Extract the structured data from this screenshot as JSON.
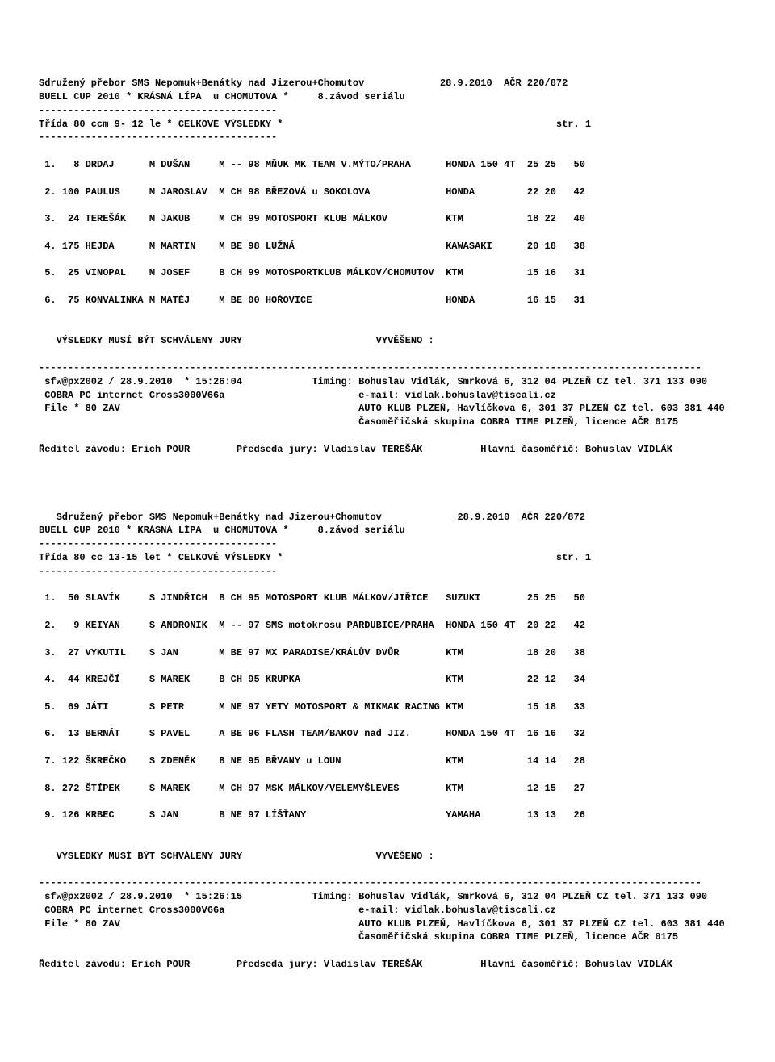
{
  "header": {
    "title": "Sdružený přebor SMS Nepomuk+Benátky nad Jizerou+Chomutov",
    "date": "28.9.2010",
    "acr": "AČR 220/872",
    "subtitle": "BUELL CUP 2010 * KRÁSNÁ LÍPA  u CHOMUTOVA *",
    "race": "8.závod seriálu",
    "dashes": "-----------------------------------------"
  },
  "class1": {
    "title": "Třída 80 ccm 9- 12 le * CELKOVÉ VÝSLEDKY *",
    "page": "str. 1",
    "rows": [
      {
        "pos": " 1.",
        "num": "  8",
        "name": "DRDAJ",
        "fi": "M",
        "fname": "DUŠAN",
        "cat": "M -- 98",
        "club": "MŇUK MK TEAM V.MÝTO/PRAHA",
        "bike": "HONDA 150 4T",
        "s1": "25",
        "s2": "25",
        "tot": "50"
      },
      {
        "pos": " 2.",
        "num": "100",
        "name": "PAULUS",
        "fi": "M",
        "fname": "JAROSLAV",
        "cat": "M CH 98",
        "club": "BŘEZOVÁ u SOKOLOVA",
        "bike": "HONDA       ",
        "s1": "22",
        "s2": "20",
        "tot": "42"
      },
      {
        "pos": " 3.",
        "num": " 24",
        "name": "TEREŠÁK",
        "fi": "M",
        "fname": "JAKUB",
        "cat": "M CH 99",
        "club": "MOTOSPORT KLUB MÁLKOV",
        "bike": "KTM         ",
        "s1": "18",
        "s2": "22",
        "tot": "40"
      },
      {
        "pos": " 4.",
        "num": "175",
        "name": "HEJDA",
        "fi": "M",
        "fname": "MARTIN",
        "cat": "M BE 98",
        "club": "LUŽNÁ",
        "bike": "KAWASAKI    ",
        "s1": "20",
        "s2": "18",
        "tot": "38"
      },
      {
        "pos": " 5.",
        "num": " 25",
        "name": "VINOPAL",
        "fi": "M",
        "fname": "JOSEF",
        "cat": "B CH 99",
        "club": "MOTOSPORTKLUB MÁLKOV/CHOMUTOV",
        "bike": "KTM         ",
        "s1": "15",
        "s2": "16",
        "tot": "31"
      },
      {
        "pos": " 6.",
        "num": " 75",
        "name": "KONVALINKA",
        "fi": "M",
        "fname": "MATĚJ",
        "cat": "M BE 00",
        "club": "HOŘOVICE",
        "bike": "HONDA       ",
        "s1": "16",
        "s2": "15",
        "tot": "31"
      }
    ]
  },
  "class2": {
    "title": "Třída 80 cc 13-15 let * CELKOVÉ VÝSLEDKY *",
    "page": "str. 1",
    "rows": [
      {
        "pos": " 1.",
        "num": " 50",
        "name": "SLAVÍK",
        "fi": "S",
        "fname": "JINDŘICH",
        "cat": "B CH 95",
        "club": "MOTOSPORT KLUB MÁLKOV/JIŘICE",
        "bike": "SUZUKI      ",
        "s1": "25",
        "s2": "25",
        "tot": "50"
      },
      {
        "pos": " 2.",
        "num": "  9",
        "name": "KEIYAN",
        "fi": "S",
        "fname": "ANDRONIK",
        "cat": "M -- 97",
        "club": "SMS motokrosu PARDUBICE/PRAHA",
        "bike": "HONDA 150 4T",
        "s1": "20",
        "s2": "22",
        "tot": "42"
      },
      {
        "pos": " 3.",
        "num": " 27",
        "name": "VYKUTIL",
        "fi": "S",
        "fname": "JAN",
        "cat": "M BE 97",
        "club": "MX PARADISE/KRÁLŮV DVŮR",
        "bike": "KTM         ",
        "s1": "18",
        "s2": "20",
        "tot": "38"
      },
      {
        "pos": " 4.",
        "num": " 44",
        "name": "KREJČÍ",
        "fi": "S",
        "fname": "MAREK",
        "cat": "B CH 95",
        "club": "KRUPKA",
        "bike": "KTM         ",
        "s1": "22",
        "s2": "12",
        "tot": "34"
      },
      {
        "pos": " 5.",
        "num": " 69",
        "name": "JÁTI",
        "fi": "S",
        "fname": "PETR",
        "cat": "M NE 97",
        "club": "YETY MOTOSPORT & MIKMAK RACING",
        "bike": "KTM         ",
        "s1": "15",
        "s2": "18",
        "tot": "33"
      },
      {
        "pos": " 6.",
        "num": " 13",
        "name": "BERNÁT",
        "fi": "S",
        "fname": "PAVEL",
        "cat": "A BE 96",
        "club": "FLASH TEAM/BAKOV nad JIZ.",
        "bike": "HONDA 150 4T",
        "s1": "16",
        "s2": "16",
        "tot": "32"
      },
      {
        "pos": " 7.",
        "num": "122",
        "name": "ŠKREČKO",
        "fi": "S",
        "fname": "ZDENĚK",
        "cat": "B NE 95",
        "club": "BŘVANY u LOUN",
        "bike": "KTM         ",
        "s1": "14",
        "s2": "14",
        "tot": "28"
      },
      {
        "pos": " 8.",
        "num": "272",
        "name": "ŠTÍPEK",
        "fi": "S",
        "fname": "MAREK",
        "cat": "M CH 97",
        "club": "MSK MÁLKOV/VELEMYŠLEVES",
        "bike": "KTM         ",
        "s1": "12",
        "s2": "15",
        "tot": "27"
      },
      {
        "pos": " 9.",
        "num": "126",
        "name": "KRBEC",
        "fi": "S",
        "fname": "JAN",
        "cat": "B NE 97",
        "club": "LÍŠŤANY",
        "bike": "YAMAHA      ",
        "s1": "13",
        "s2": "13",
        "tot": "26"
      }
    ]
  },
  "footer": {
    "approve": "VÝSLEDKY MUSÍ BÝT SCHVÁLENY JURY",
    "posted": "VYVĚŠENO :",
    "longdash": "------------------------------------------------------------------------------------------------------------------",
    "sfw1": "sfw@px2002 / 28.9.2010  * 15:26:04",
    "sfw2": "sfw@px2002 / 28.9.2010  * 15:26:15",
    "timing": "Timing: Bohuslav Vidlák, Smrková 6, 312 04 PLZEŇ CZ tel. 371 133 090",
    "cobra": "COBRA PC internet Cross3000V66a",
    "email": "e-mail: vidlak.bohuslav@tiscali.cz",
    "file": "File * 80 ZAV",
    "auto": "AUTO KLUB PLZEŇ, Havlíčkova 6, 301 37 PLZEŇ CZ tel. 603 381 440",
    "caso": "Časoměřičská skupina COBRA TIME PLZEŇ, licence AČR 0175",
    "director": "Ředitel závodu: Erich POUR",
    "jury": "Předseda jury: Vladislav TEREŠÁK",
    "timer": "Hlavní časoměřič: Bohuslav VIDLÁK"
  }
}
